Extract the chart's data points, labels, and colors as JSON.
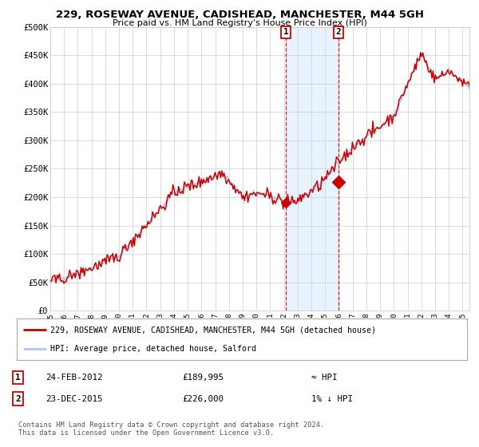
{
  "title": "229, ROSEWAY AVENUE, CADISHEAD, MANCHESTER, M44 5GH",
  "subtitle": "Price paid vs. HM Land Registry's House Price Index (HPI)",
  "ylim": [
    0,
    500000
  ],
  "yticks": [
    0,
    50000,
    100000,
    150000,
    200000,
    250000,
    300000,
    350000,
    400000,
    450000,
    500000
  ],
  "ytick_labels": [
    "£0",
    "£50K",
    "£100K",
    "£150K",
    "£200K",
    "£250K",
    "£300K",
    "£350K",
    "£400K",
    "£450K",
    "£500K"
  ],
  "xlim_start": 1995.0,
  "xlim_end": 2025.5,
  "xtick_years": [
    1995,
    1996,
    1997,
    1998,
    1999,
    2000,
    2001,
    2002,
    2003,
    2004,
    2005,
    2006,
    2007,
    2008,
    2009,
    2010,
    2011,
    2012,
    2013,
    2014,
    2015,
    2016,
    2017,
    2018,
    2019,
    2020,
    2021,
    2022,
    2023,
    2024,
    2025
  ],
  "hpi_color": "#aaccee",
  "price_color": "#cc0000",
  "point1_x": 2012.15,
  "point1_y": 189995,
  "point2_x": 2015.98,
  "point2_y": 226000,
  "shade_x1": 2012.15,
  "shade_x2": 2015.98,
  "legend_line1": "229, ROSEWAY AVENUE, CADISHEAD, MANCHESTER, M44 5GH (detached house)",
  "legend_line2": "HPI: Average price, detached house, Salford",
  "table_row1_date": "24-FEB-2012",
  "table_row1_price": "£189,995",
  "table_row1_hpi": "≈ HPI",
  "table_row2_date": "23-DEC-2015",
  "table_row2_price": "£226,000",
  "table_row2_hpi": "1% ↓ HPI",
  "footer": "Contains HM Land Registry data © Crown copyright and database right 2024.\nThis data is licensed under the Open Government Licence v3.0.",
  "background_color": "#ffffff",
  "grid_color": "#cccccc"
}
